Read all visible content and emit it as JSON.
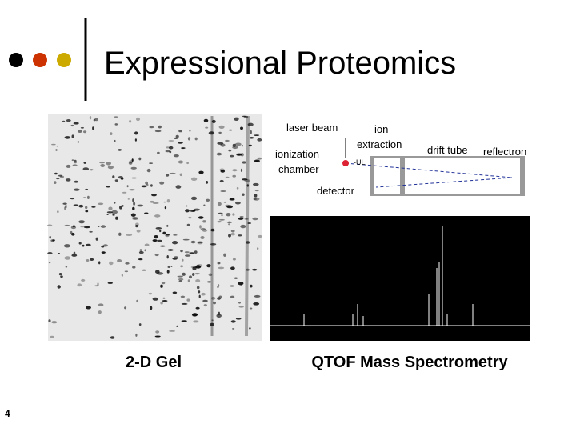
{
  "slide": {
    "title": "Expressional Proteomics",
    "captions": [
      "2-D Gel",
      "QTOF Mass Spectrometry"
    ],
    "page_number": "4",
    "diagram": {
      "labels": [
        "laser beam",
        "ion",
        "extraction",
        "ionization",
        "chamber",
        "drift tube",
        "reflectron",
        "detector",
        "-UL"
      ]
    }
  }
}
